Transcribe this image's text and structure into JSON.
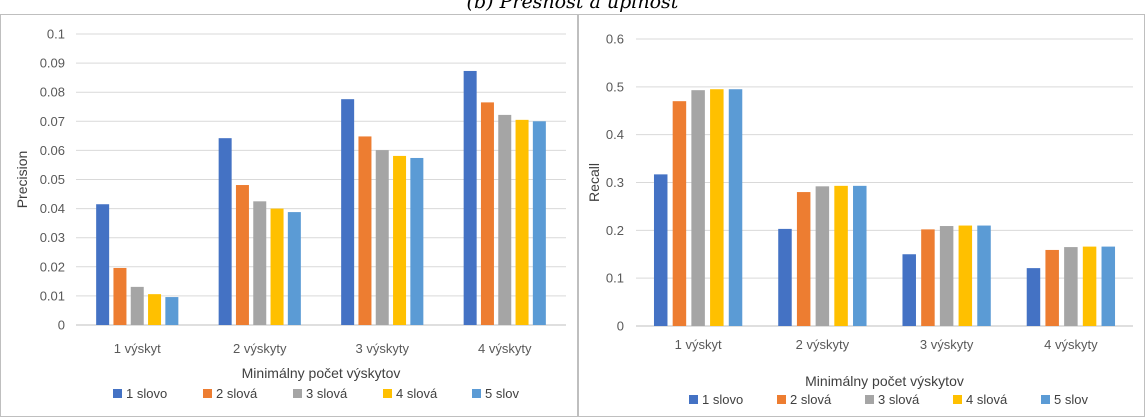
{
  "caption": "(b) Presnosť a úplnosť",
  "chart_data": [
    {
      "type": "bar",
      "categories": [
        "1 výskyt",
        "2 výskyty",
        "3 výskyty",
        "4 výskyty"
      ],
      "xlabel": "Minimálny počet výskytov",
      "ylabel": "Precision",
      "ylim": [
        0,
        0.1
      ],
      "yticks": [
        "0",
        "0.01",
        "0.02",
        "0.03",
        "0.04",
        "0.05",
        "0.06",
        "0.07",
        "0.08",
        "0.09",
        "0.1"
      ],
      "grid": true,
      "legend": "bottom",
      "series": [
        {
          "name": "1 slovo",
          "color": "#4472c4",
          "values": [
            0.0415,
            0.0642,
            0.0776,
            0.0873
          ]
        },
        {
          "name": "2 slová",
          "color": "#ed7d31",
          "values": [
            0.0196,
            0.0481,
            0.0648,
            0.0765
          ]
        },
        {
          "name": "3 slová",
          "color": "#a5a5a5",
          "values": [
            0.0131,
            0.0425,
            0.0601,
            0.0722
          ]
        },
        {
          "name": "4 slová",
          "color": "#ffc000",
          "values": [
            0.0106,
            0.04,
            0.0581,
            0.0705
          ]
        },
        {
          "name": "5 slov",
          "color": "#5b9bd5",
          "values": [
            0.0096,
            0.0388,
            0.0574,
            0.07
          ]
        }
      ]
    },
    {
      "type": "bar",
      "categories": [
        "1 výskyt",
        "2 výskyty",
        "3 výskyty",
        "4 výskyty"
      ],
      "xlabel": "Minimálny počet výskytov",
      "ylabel": "Recall",
      "ylim": [
        0,
        0.6
      ],
      "yticks": [
        "0",
        "0.1",
        "0.2",
        "0.3",
        "0.4",
        "0.5",
        "0.6"
      ],
      "grid": true,
      "legend": "bottom",
      "series": [
        {
          "name": "1 slovo",
          "color": "#4472c4",
          "values": [
            0.317,
            0.203,
            0.15,
            0.121
          ]
        },
        {
          "name": "2 slová",
          "color": "#ed7d31",
          "values": [
            0.47,
            0.28,
            0.202,
            0.159
          ]
        },
        {
          "name": "3 slová",
          "color": "#a5a5a5",
          "values": [
            0.493,
            0.292,
            0.209,
            0.165
          ]
        },
        {
          "name": "4 slová",
          "color": "#ffc000",
          "values": [
            0.495,
            0.293,
            0.21,
            0.166
          ]
        },
        {
          "name": "5 slov",
          "color": "#5b9bd5",
          "values": [
            0.495,
            0.293,
            0.21,
            0.166
          ]
        }
      ]
    }
  ]
}
